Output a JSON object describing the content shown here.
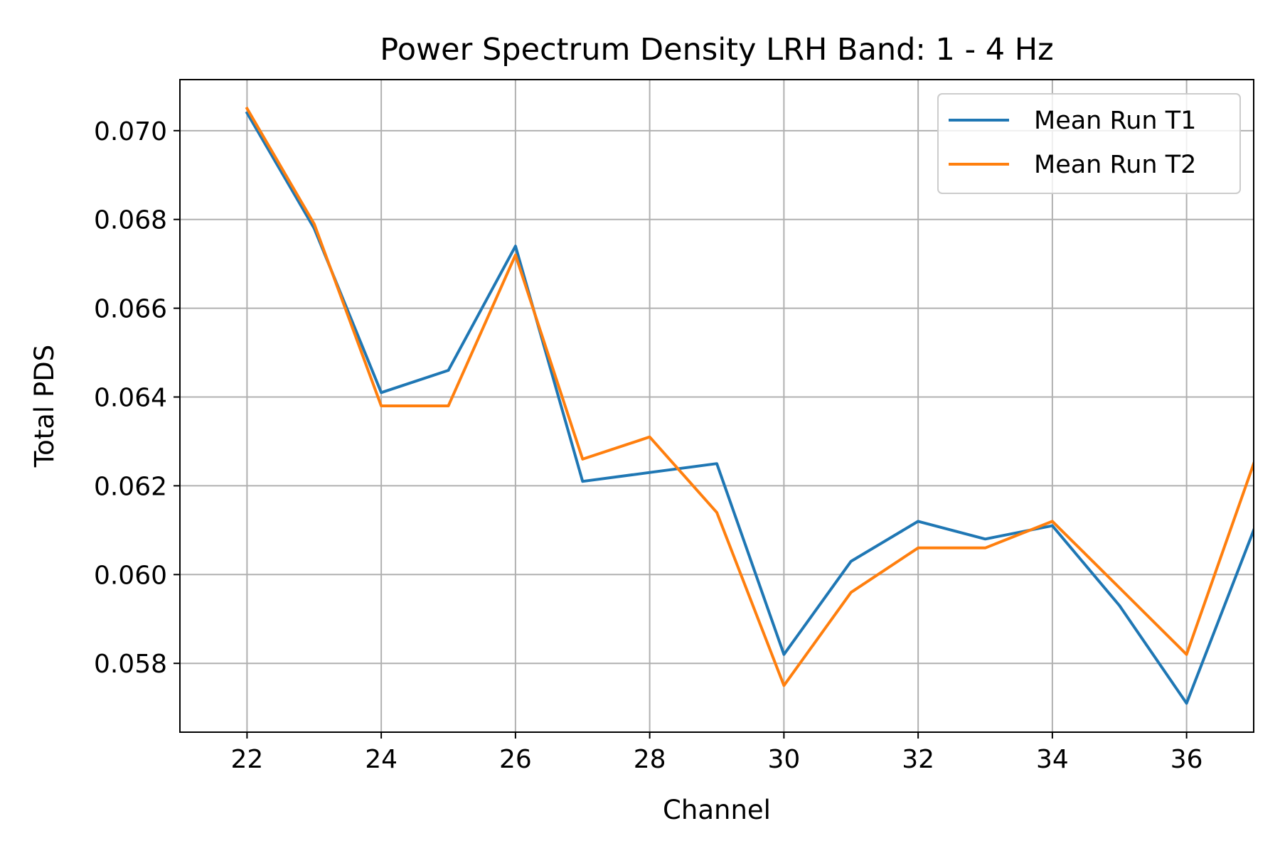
{
  "chart_data": {
    "type": "line",
    "title": "Power Spectrum Density LRH  Band: 1 - 4 Hz",
    "xlabel": "Channel",
    "ylabel": "Total PDS",
    "xlim": [
      21,
      37
    ],
    "ylim": [
      0.05645,
      0.07115
    ],
    "x_ticks": [
      22,
      24,
      26,
      28,
      30,
      32,
      34,
      36
    ],
    "y_ticks": [
      0.058,
      0.06,
      0.062,
      0.064,
      0.066,
      0.068,
      0.07
    ],
    "y_tick_labels": [
      "0.058",
      "0.060",
      "0.062",
      "0.064",
      "0.066",
      "0.068",
      "0.070"
    ],
    "grid": true,
    "legend_position": "top-right",
    "x": [
      22,
      23,
      24,
      25,
      26,
      27,
      28,
      29,
      30,
      31,
      32,
      33,
      34,
      35,
      36,
      37
    ],
    "series": [
      {
        "name": "Mean Run T1",
        "color": "#1f77b4",
        "values": [
          0.0704,
          0.0678,
          0.0641,
          0.0646,
          0.0674,
          0.0621,
          0.0623,
          0.0625,
          0.0582,
          0.0603,
          0.0612,
          0.0608,
          0.0611,
          0.0593,
          0.0571,
          0.061
        ]
      },
      {
        "name": "Mean Run T2",
        "color": "#ff7f0e",
        "values": [
          0.0705,
          0.0679,
          0.0638,
          0.0638,
          0.0672,
          0.0626,
          0.0631,
          0.0614,
          0.0575,
          0.0596,
          0.0606,
          0.0606,
          0.0612,
          0.0597,
          0.0582,
          0.0625
        ]
      }
    ]
  }
}
